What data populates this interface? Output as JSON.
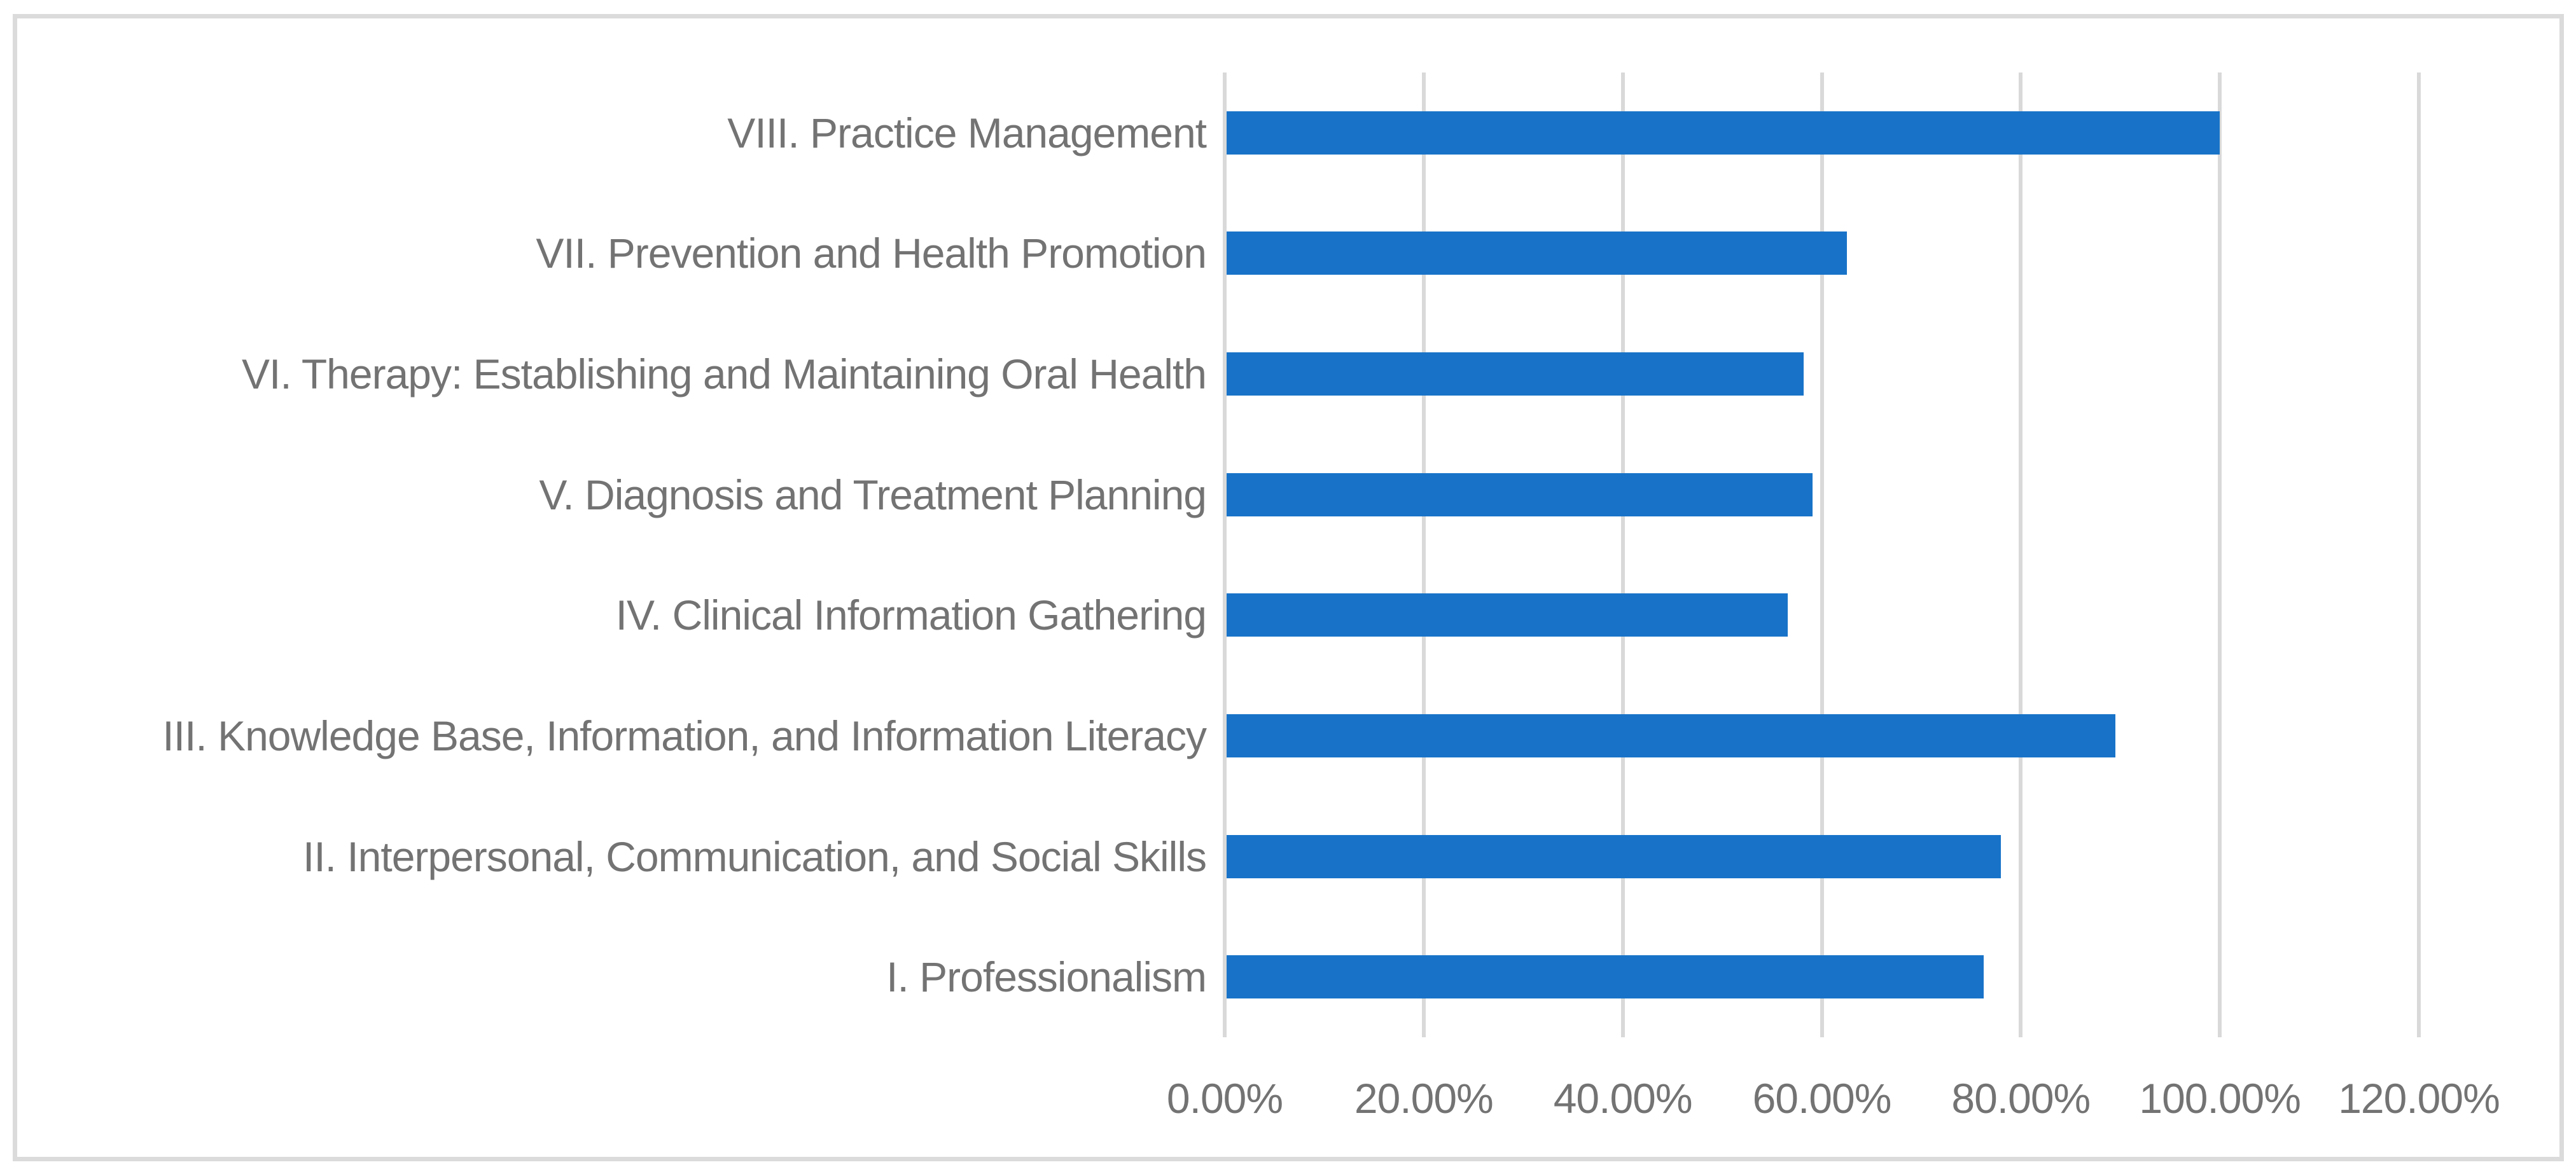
{
  "chart_data": {
    "type": "bar",
    "orientation": "horizontal",
    "title": "",
    "xlabel": "",
    "ylabel": "",
    "categories": [
      "VIII. Practice Management",
      "VII. Prevention and Health Promotion",
      "VI. Therapy: Establishing and Maintaining Oral Health",
      "V. Diagnosis and Treatment Planning",
      "IV. Clinical Information Gathering",
      "III. Knowledge Base, Information, and Information Literacy",
      "II. Interpersonal, Communication, and Social Skills",
      "I. Professionalism"
    ],
    "values": [
      100.0,
      62.5,
      58.2,
      59.1,
      56.6,
      89.5,
      78.0,
      76.3
    ],
    "unit": "%",
    "xlim": [
      0,
      120
    ],
    "xticks": [
      {
        "value": 0,
        "label": "0.00%"
      },
      {
        "value": 20,
        "label": "20.00%"
      },
      {
        "value": 40,
        "label": "40.00%"
      },
      {
        "value": 60,
        "label": "60.00%"
      },
      {
        "value": 80,
        "label": "80.00%"
      },
      {
        "value": 100,
        "label": "100.00%"
      },
      {
        "value": 120,
        "label": "120.00%"
      }
    ],
    "grid": "vertical-major-on",
    "legend": "none",
    "colors": {
      "bar": "#1873C8",
      "gridline": "#D9D9D9",
      "axis_text": "#737373",
      "frame_border": "#DBDBDB",
      "background": "#FFFFFF"
    }
  }
}
